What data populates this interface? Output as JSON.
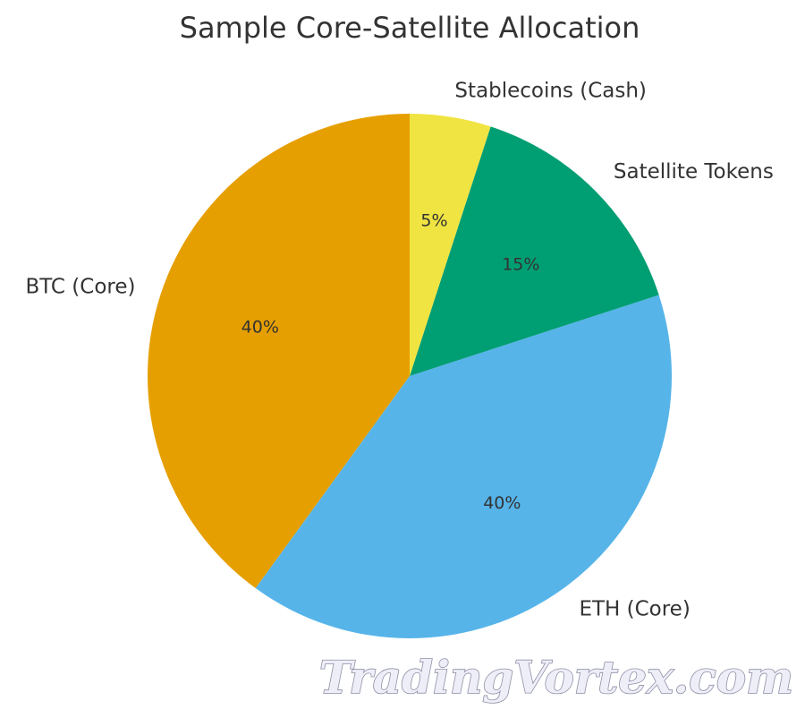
{
  "chart_data": {
    "type": "pie",
    "title": "Sample Core-Satellite Allocation",
    "slices": [
      {
        "label": "BTC (Core)",
        "value": 40,
        "pct_label": "40%",
        "color": "#E69F00"
      },
      {
        "label": "ETH (Core)",
        "value": 40,
        "pct_label": "40%",
        "color": "#56B4E9"
      },
      {
        "label": "Satellite Tokens",
        "value": 15,
        "pct_label": "15%",
        "color": "#009E73"
      },
      {
        "label": "Stablecoins (Cash)",
        "value": 5,
        "pct_label": "5%",
        "color": "#F0E442"
      }
    ],
    "start_angle": "top",
    "direction": "counterclockwise"
  },
  "watermark": {
    "text": "TradingVortex.com"
  }
}
